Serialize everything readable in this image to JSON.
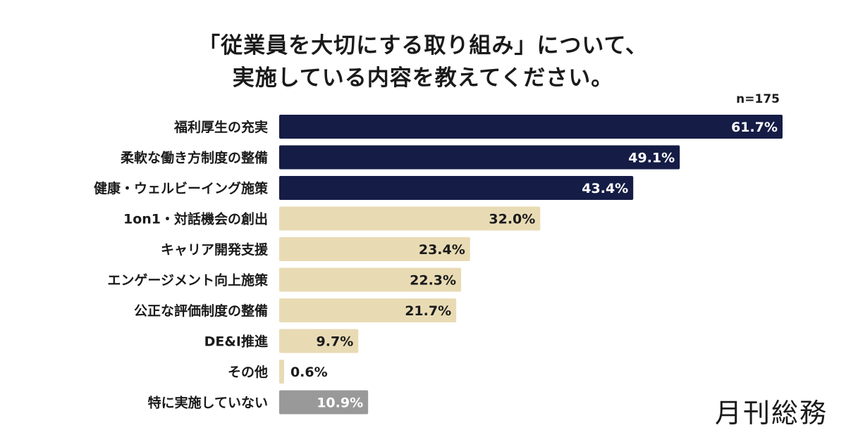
{
  "title_lines": [
    "「従業員を大切にする取り組み」について、",
    "実施している内容を教えてください。"
  ],
  "sample_note": "n=175",
  "brand": "月刊総務",
  "colors": {
    "dark": "#151c46",
    "light": "#e8dbb4",
    "gray": "#999999"
  },
  "chart_data": {
    "type": "bar",
    "orientation": "horizontal",
    "categories": [
      "福利厚生の充実",
      "柔軟な働き方制度の整備",
      "健康・ウェルビーイング施策",
      "1on1・対話機会の創出",
      "キャリア開発支援",
      "エンゲージメント向上施策",
      "公正な評価制度の整備",
      "DE&I推進",
      "その他",
      "特に実施していない"
    ],
    "values": [
      61.7,
      49.1,
      43.4,
      32.0,
      23.4,
      22.3,
      21.7,
      9.7,
      0.6,
      10.9
    ],
    "value_labels": [
      "61.7%",
      "49.1%",
      "43.4%",
      "32.0%",
      "23.4%",
      "22.3%",
      "21.7%",
      "9.7%",
      "0.6%",
      "10.9%"
    ],
    "bar_colors": [
      "dark",
      "dark",
      "dark",
      "light",
      "light",
      "light",
      "light",
      "light",
      "light",
      "gray"
    ],
    "xlim": [
      0,
      100
    ],
    "grid": false
  }
}
